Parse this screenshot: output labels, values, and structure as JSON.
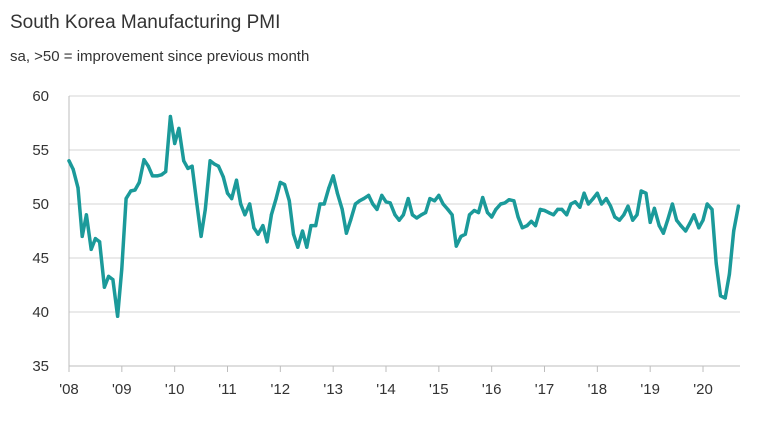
{
  "chart_data": {
    "type": "line",
    "title": "South Korea Manufacturing PMI",
    "subtitle": "sa, >50 = improvement since previous month",
    "xlabel": "",
    "ylabel": "",
    "ylim": [
      35,
      60
    ],
    "yticks": [
      35,
      40,
      45,
      50,
      55,
      60
    ],
    "xlim": [
      2008.0,
      2020.7
    ],
    "xticks": [
      {
        "value": 2008,
        "label": "'08"
      },
      {
        "value": 2009,
        "label": "'09"
      },
      {
        "value": 2010,
        "label": "'10"
      },
      {
        "value": 2011,
        "label": "'11"
      },
      {
        "value": 2012,
        "label": "'12"
      },
      {
        "value": 2013,
        "label": "'13"
      },
      {
        "value": 2014,
        "label": "'14"
      },
      {
        "value": 2015,
        "label": "'15"
      },
      {
        "value": 2016,
        "label": "'16"
      },
      {
        "value": 2017,
        "label": "'17"
      },
      {
        "value": 2018,
        "label": "'18"
      },
      {
        "value": 2019,
        "label": "'19"
      },
      {
        "value": 2020,
        "label": "'20"
      }
    ],
    "grid": "horizontal",
    "legend": "none",
    "series": [
      {
        "name": "South Korea Manufacturing PMI",
        "color": "#1b9a9a",
        "x": [
          2008.0,
          2008.08,
          2008.17,
          2008.25,
          2008.33,
          2008.42,
          2008.5,
          2008.58,
          2008.67,
          2008.75,
          2008.83,
          2008.92,
          2009.0,
          2009.08,
          2009.17,
          2009.25,
          2009.33,
          2009.42,
          2009.5,
          2009.58,
          2009.67,
          2009.75,
          2009.83,
          2009.92,
          2010.0,
          2010.08,
          2010.17,
          2010.25,
          2010.33,
          2010.42,
          2010.5,
          2010.58,
          2010.67,
          2010.75,
          2010.83,
          2010.92,
          2011.0,
          2011.08,
          2011.17,
          2011.25,
          2011.33,
          2011.42,
          2011.5,
          2011.58,
          2011.67,
          2011.75,
          2011.83,
          2011.92,
          2012.0,
          2012.08,
          2012.17,
          2012.25,
          2012.33,
          2012.42,
          2012.5,
          2012.58,
          2012.67,
          2012.75,
          2012.83,
          2012.92,
          2013.0,
          2013.08,
          2013.17,
          2013.25,
          2013.33,
          2013.42,
          2013.5,
          2013.58,
          2013.67,
          2013.75,
          2013.83,
          2013.92,
          2014.0,
          2014.08,
          2014.17,
          2014.25,
          2014.33,
          2014.42,
          2014.5,
          2014.58,
          2014.67,
          2014.75,
          2014.83,
          2014.92,
          2015.0,
          2015.08,
          2015.17,
          2015.25,
          2015.33,
          2015.42,
          2015.5,
          2015.58,
          2015.67,
          2015.75,
          2015.83,
          2015.92,
          2016.0,
          2016.08,
          2016.17,
          2016.25,
          2016.33,
          2016.42,
          2016.5,
          2016.58,
          2016.67,
          2016.75,
          2016.83,
          2016.92,
          2017.0,
          2017.08,
          2017.17,
          2017.25,
          2017.33,
          2017.42,
          2017.5,
          2017.58,
          2017.67,
          2017.75,
          2017.83,
          2017.92,
          2018.0,
          2018.08,
          2018.17,
          2018.25,
          2018.33,
          2018.42,
          2018.5,
          2018.58,
          2018.67,
          2018.75,
          2018.83,
          2018.92,
          2019.0,
          2019.08,
          2019.17,
          2019.25,
          2019.33,
          2019.42,
          2019.5,
          2019.58,
          2019.67,
          2019.75,
          2019.83,
          2019.92,
          2020.0,
          2020.08,
          2020.17,
          2020.25,
          2020.33,
          2020.42,
          2020.5,
          2020.58,
          2020.67
        ],
        "values": [
          54.0,
          53.2,
          51.5,
          47.0,
          49.0,
          45.8,
          46.8,
          46.5,
          42.3,
          43.3,
          43.0,
          39.6,
          44.0,
          50.5,
          51.2,
          51.3,
          52.0,
          54.1,
          53.5,
          52.6,
          52.6,
          52.7,
          53.0,
          58.1,
          55.6,
          57.0,
          54.0,
          53.3,
          53.5,
          50.0,
          47.0,
          49.5,
          54.0,
          53.7,
          53.5,
          52.5,
          51.0,
          50.5,
          52.2,
          50.0,
          49.0,
          50.0,
          47.8,
          47.2,
          48.0,
          46.5,
          49.0,
          50.5,
          52.0,
          51.8,
          50.3,
          47.2,
          46.0,
          47.5,
          46.0,
          48.0,
          48.0,
          50.0,
          50.0,
          51.5,
          52.6,
          51.0,
          49.5,
          47.3,
          48.5,
          50.0,
          50.3,
          50.5,
          50.8,
          50.0,
          49.5,
          50.8,
          50.2,
          50.1,
          49.0,
          48.5,
          49.0,
          50.5,
          49.0,
          48.7,
          49.0,
          49.2,
          50.5,
          50.3,
          50.8,
          50.0,
          49.5,
          49.0,
          46.1,
          47.0,
          47.2,
          49.0,
          49.4,
          49.2,
          50.6,
          49.2,
          48.8,
          49.5,
          50.0,
          50.1,
          50.4,
          50.3,
          48.8,
          47.8,
          48.0,
          48.4,
          48.0,
          49.5,
          49.4,
          49.2,
          49.0,
          49.5,
          49.5,
          49.0,
          50.0,
          50.2,
          49.7,
          51.0,
          50.0,
          50.5,
          51.0,
          50.0,
          50.5,
          49.8,
          48.8,
          48.5,
          49.0,
          49.8,
          48.5,
          49.0,
          51.2,
          51.0,
          48.3,
          49.6,
          48.0,
          47.3,
          48.5,
          50.0,
          48.5,
          48.0,
          47.5,
          48.2,
          49.0,
          47.8,
          48.5,
          50.0,
          49.5,
          44.5,
          41.5,
          41.3,
          43.5,
          47.5,
          49.8
        ]
      }
    ]
  }
}
